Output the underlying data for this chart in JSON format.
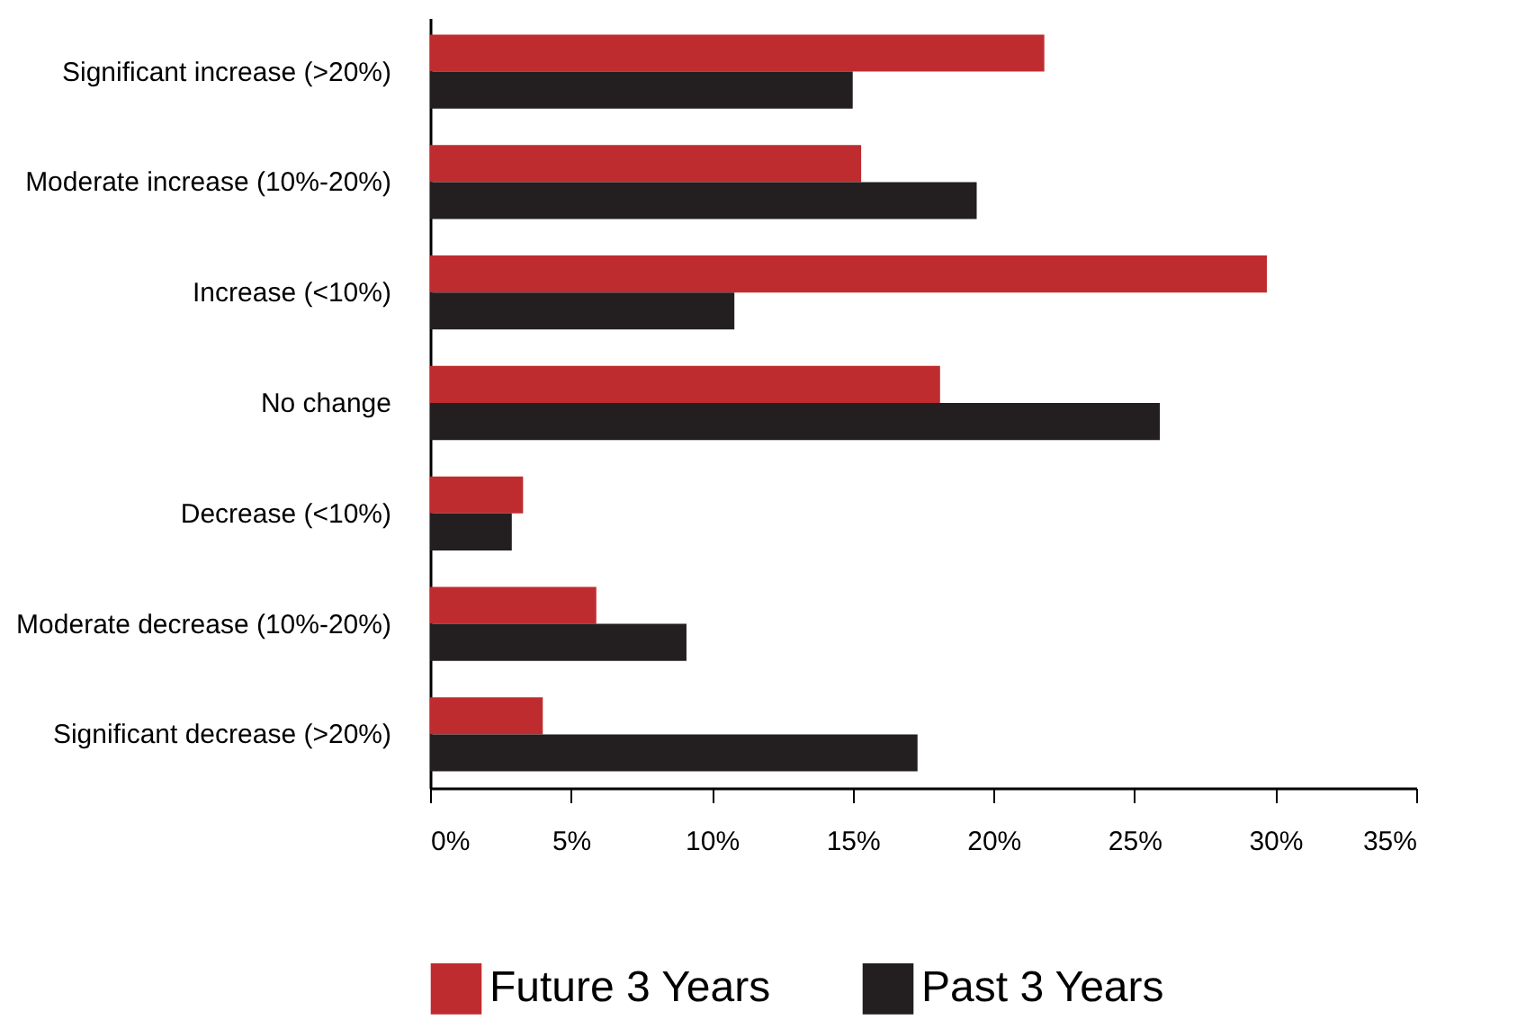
{
  "chart_data": {
    "type": "bar",
    "orientation": "horizontal",
    "categories": [
      "Significant increase (>20%)",
      "Moderate increase (10%-20%)",
      "Increase (<10%)",
      "No change",
      "Decrease (<10%)",
      "Moderate decrease (10%-20%)",
      "Significant decrease (>20%)"
    ],
    "series": [
      {
        "name": "Future 3 Years",
        "color": "#bf2c30",
        "values": [
          21.8,
          15.3,
          29.7,
          18.1,
          3.3,
          5.9,
          4.0
        ]
      },
      {
        "name": "Past 3 Years",
        "color": "#231f20",
        "values": [
          15.0,
          19.4,
          10.8,
          25.9,
          2.9,
          9.1,
          17.3
        ]
      }
    ],
    "xlim": [
      0,
      35
    ],
    "xticks": [
      {
        "value": 0,
        "label": "0%"
      },
      {
        "value": 5,
        "label": "5%"
      },
      {
        "value": 10,
        "label": "10%"
      },
      {
        "value": 15,
        "label": "15%"
      },
      {
        "value": 20,
        "label": "20%"
      },
      {
        "value": 25,
        "label": "25%"
      },
      {
        "value": 30,
        "label": "30%"
      },
      {
        "value": 35,
        "label": "35%"
      }
    ],
    "grid": false,
    "legend": "bottom"
  }
}
